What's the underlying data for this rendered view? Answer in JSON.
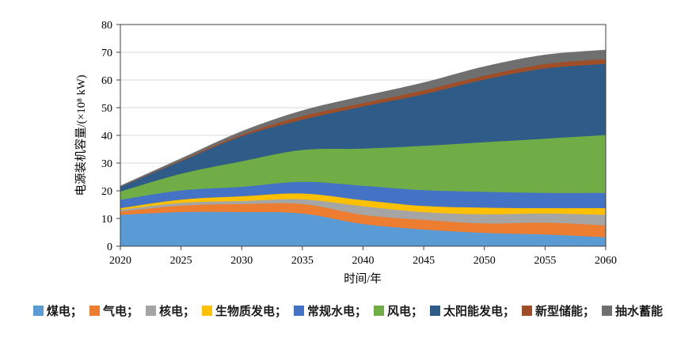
{
  "chart_data": {
    "type": "area",
    "stacked": true,
    "title": "",
    "xlabel": "时间/年",
    "ylabel": "电源装机容量/(×10⁸ kW)",
    "x": [
      2020,
      2025,
      2030,
      2035,
      2040,
      2045,
      2050,
      2055,
      2060
    ],
    "x_tick_labels": [
      "2020",
      "2025",
      "2030",
      "2035",
      "2040",
      "2045",
      "2050",
      "2055",
      "2060"
    ],
    "y_tick_labels": [
      "0",
      "10",
      "20",
      "30",
      "40",
      "50",
      "60",
      "70",
      "80"
    ],
    "ylim": [
      0,
      80
    ],
    "ytick_step": 10,
    "grid": "horizontal-only",
    "legend_position": "bottom",
    "series": [
      {
        "name": "煤电",
        "color": "#5B9BD5",
        "values": [
          11.3,
          12.3,
          12.3,
          11.8,
          8.0,
          6.0,
          4.8,
          4.2,
          3.2
        ]
      },
      {
        "name": "气电",
        "color": "#ED7D31",
        "values": [
          1.2,
          2.3,
          2.9,
          3.4,
          3.3,
          3.5,
          3.4,
          4.3,
          4.3
        ]
      },
      {
        "name": "核电",
        "color": "#A5A5A5",
        "values": [
          0.6,
          1.0,
          1.1,
          1.7,
          3.1,
          2.8,
          3.3,
          3.3,
          3.8
        ]
      },
      {
        "name": "生物质发电",
        "color": "#FFC000",
        "values": [
          0.6,
          1.2,
          1.7,
          2.1,
          2.2,
          2.2,
          2.4,
          1.9,
          2.4
        ]
      },
      {
        "name": "常规水电",
        "color": "#4472C4",
        "values": [
          3.0,
          3.3,
          3.4,
          4.2,
          5.2,
          5.7,
          5.7,
          5.5,
          5.5
        ]
      },
      {
        "name": "风电",
        "color": "#70AD47",
        "values": [
          3.0,
          6.0,
          9.2,
          11.5,
          13.4,
          16.0,
          17.9,
          19.6,
          20.9
        ]
      },
      {
        "name": "太阳能发电",
        "color": "#2F5B89",
        "values": [
          1.6,
          4.5,
          9.0,
          10.9,
          15.2,
          18.6,
          22.6,
          25.3,
          25.7
        ]
      },
      {
        "name": "新型储能",
        "color": "#A04E28",
        "values": [
          0.1,
          0.3,
          0.6,
          1.3,
          1.2,
          1.4,
          1.4,
          1.6,
          1.7
        ]
      },
      {
        "name": "抽水蓄能",
        "color": "#6F6F6F",
        "values": [
          0.4,
          0.8,
          1.3,
          2.1,
          2.6,
          2.9,
          3.4,
          3.4,
          3.4
        ]
      }
    ],
    "legend_labels": [
      "煤电；",
      "气电；",
      "核电；",
      "生物质发电；",
      "常规水电；",
      "风电；",
      "太阳能发电；",
      "新型储能；",
      "抽水蓄能"
    ],
    "axis_color": "#404040",
    "gridline_color": "#D9D9D9",
    "text_color": "#000000"
  }
}
